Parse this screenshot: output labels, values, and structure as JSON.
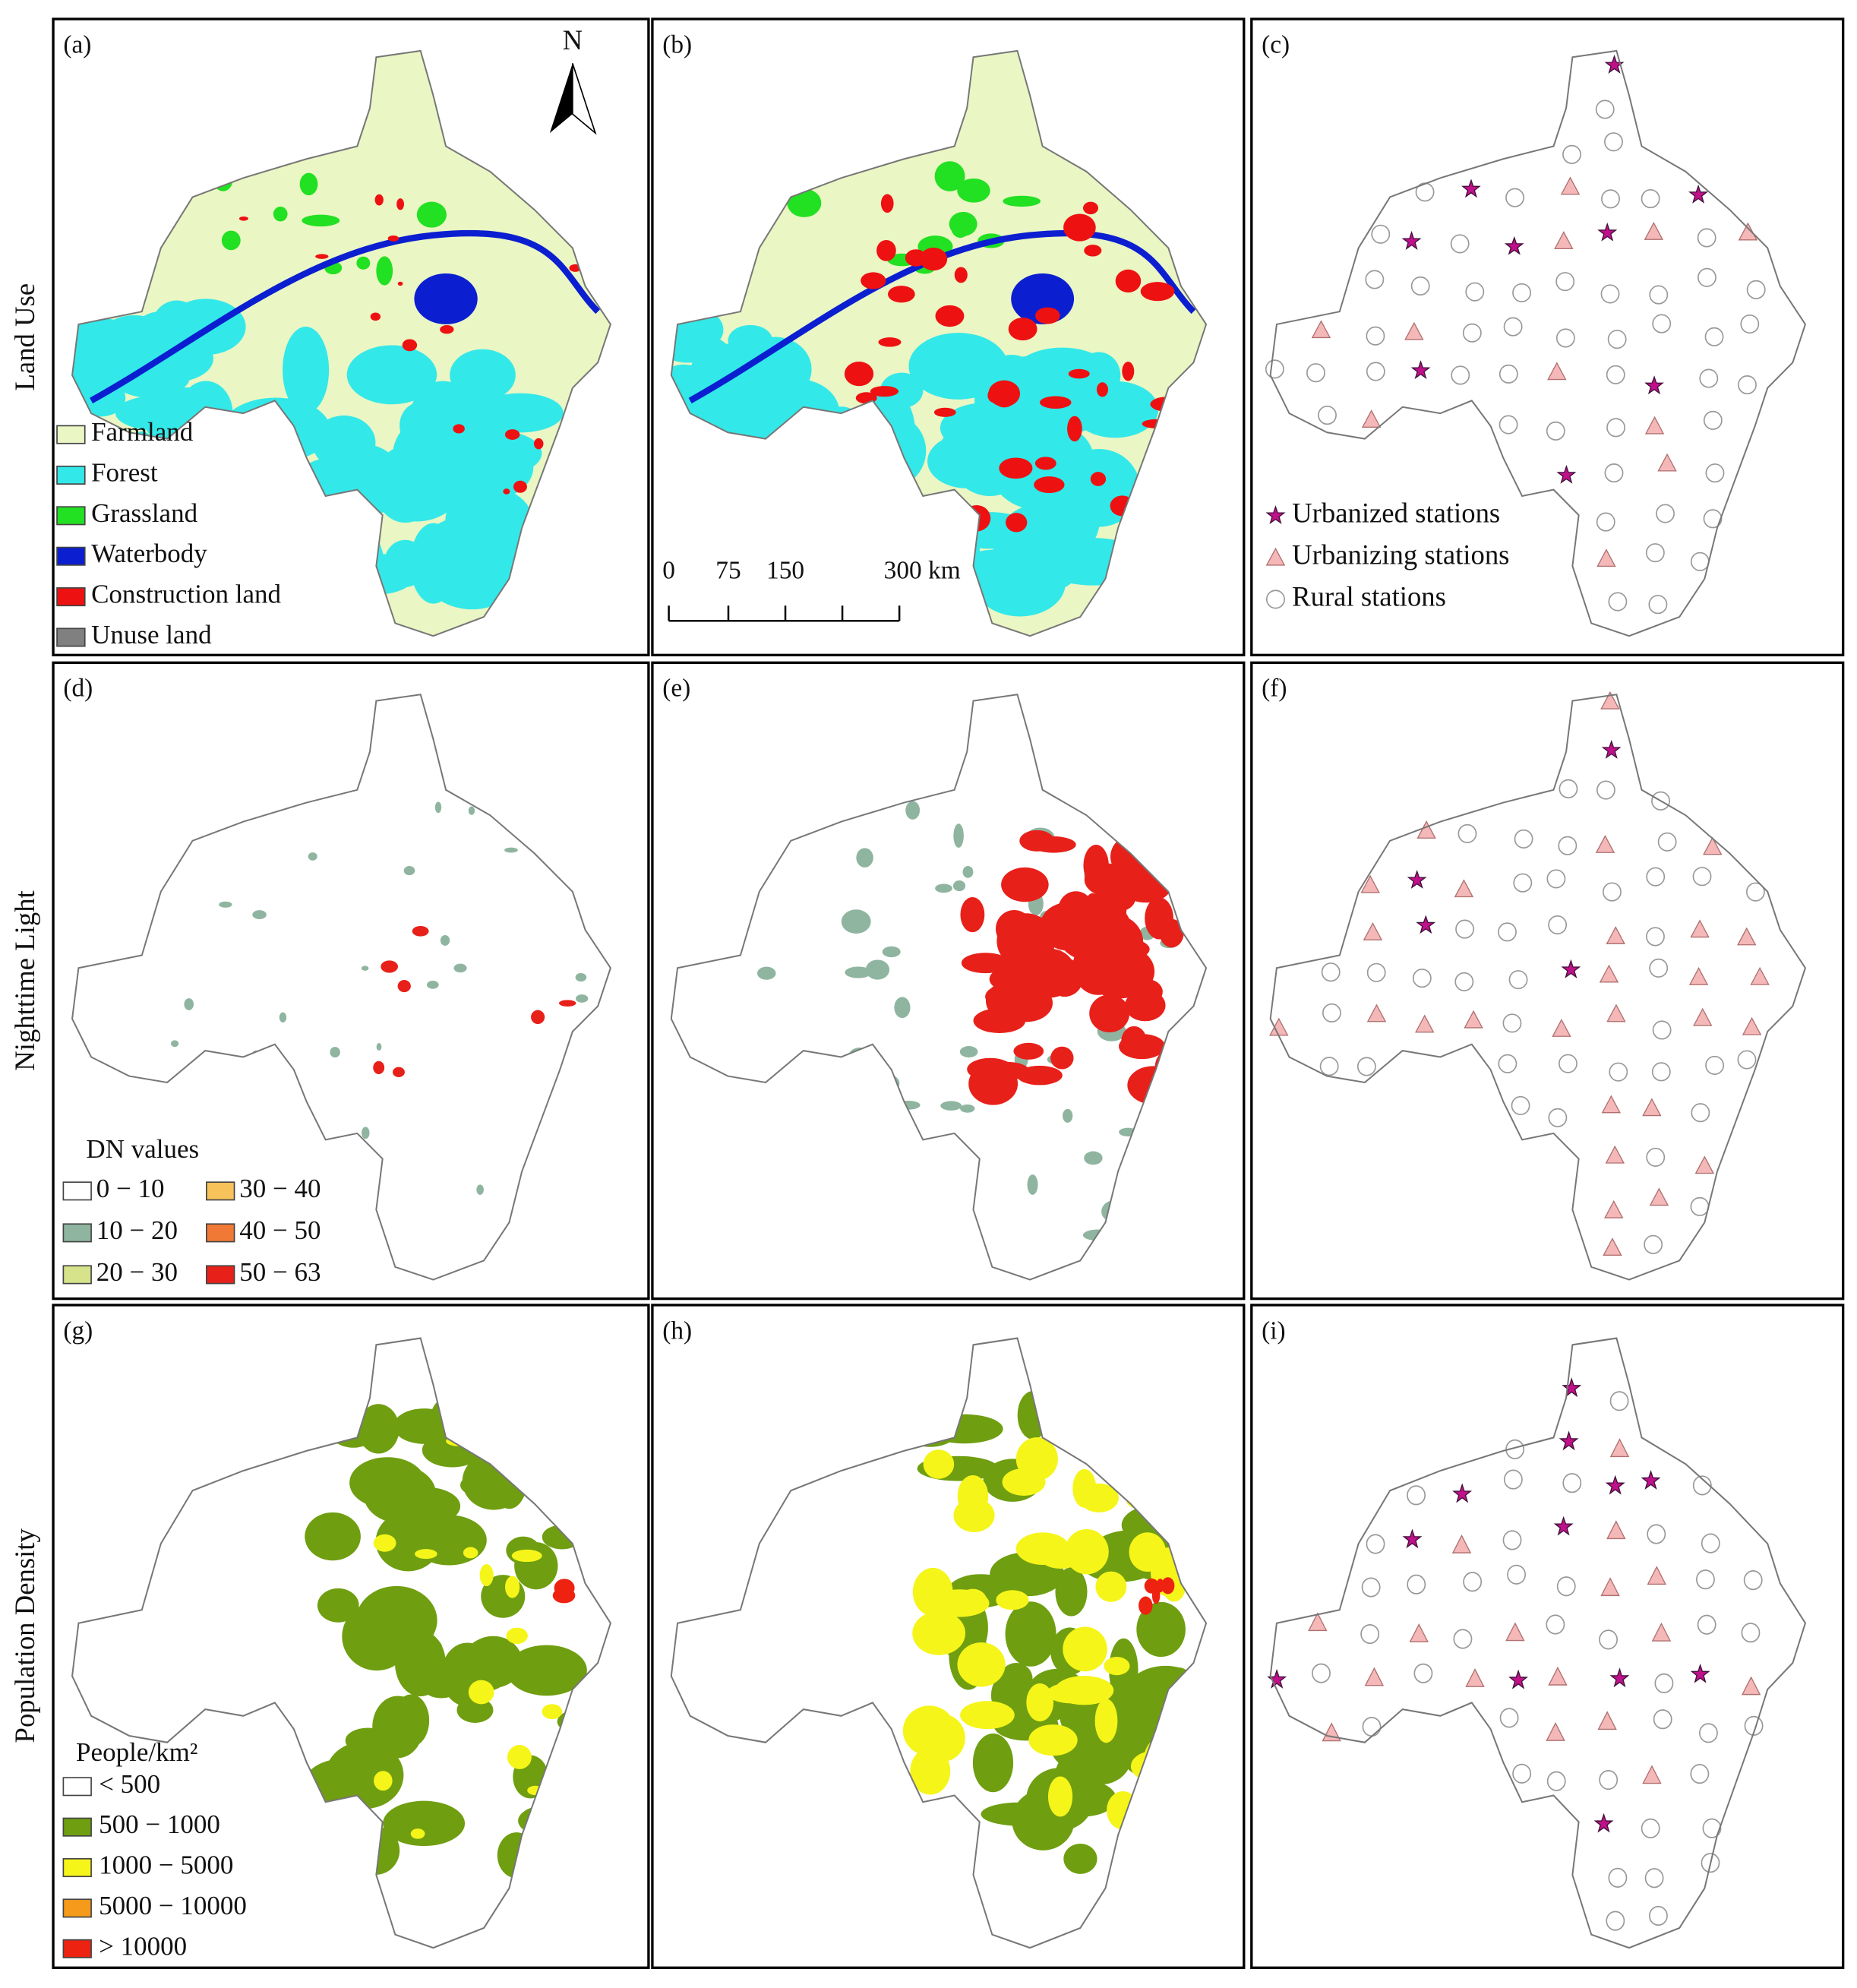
{
  "row_labels": [
    "Land Use",
    "Nighttime Light",
    "Population Density"
  ],
  "panels": [
    {
      "label": "(a)"
    },
    {
      "label": "(b)"
    },
    {
      "label": "(c)"
    },
    {
      "label": "(d)"
    },
    {
      "label": "(e)"
    },
    {
      "label": "(f)"
    },
    {
      "label": "(g)"
    },
    {
      "label": "(h)"
    },
    {
      "label": "(i)"
    }
  ],
  "north": "N",
  "land_use_legend": [
    {
      "label": "Farmland",
      "color": "#eaf6c4"
    },
    {
      "label": "Forest",
      "color": "#33e8e8"
    },
    {
      "label": "Grassland",
      "color": "#22e022"
    },
    {
      "label": "Waterbody",
      "color": "#0b1fd0"
    },
    {
      "label": "Construction land",
      "color": "#ee1111"
    },
    {
      "label": "Unuse land",
      "color": "#808080"
    }
  ],
  "scale_bar": [
    "0",
    "75",
    "150",
    "300 km"
  ],
  "station_legend": [
    {
      "label": "Urbanized stations"
    },
    {
      "label": "Urbanizing stations"
    },
    {
      "label": "Rural stations"
    }
  ],
  "dn_legend": {
    "title": "DN values",
    "classes": [
      {
        "label": "0 − 10",
        "color": "#ffffff"
      },
      {
        "label": "10 − 20",
        "color": "#8fb5a0"
      },
      {
        "label": "20 − 30",
        "color": "#d6e38a"
      },
      {
        "label": "30 − 40",
        "color": "#f7c25a"
      },
      {
        "label": "40 − 50",
        "color": "#f07a35"
      },
      {
        "label": "50 − 63",
        "color": "#e8201a"
      }
    ]
  },
  "pop_legend": {
    "title": "People/km²",
    "classes": [
      {
        "label": "< 500",
        "color": "#ffffff"
      },
      {
        "label": "500 − 1000",
        "color": "#6f9e10"
      },
      {
        "label": "1000 − 5000",
        "color": "#f5f51a"
      },
      {
        "label": "5000 − 10000",
        "color": "#f59a1a"
      },
      {
        "label": "> 10000",
        "color": "#ee2211"
      }
    ]
  }
}
